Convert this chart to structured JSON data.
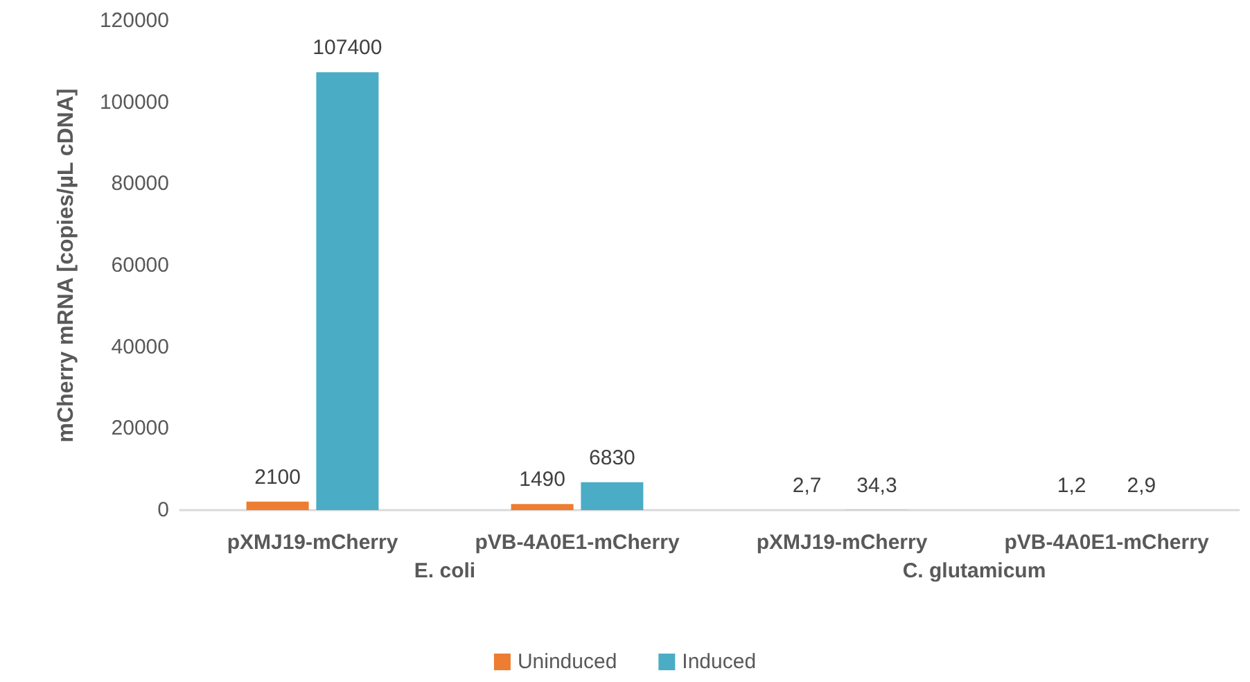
{
  "chart_data": {
    "type": "bar",
    "categories": [
      "pXMJ19-mCherry",
      "pVB-4A0E1-mCherry",
      "pXMJ19-mCherry",
      "pVB-4A0E1-mCherry"
    ],
    "series": [
      {
        "name": "Uninduced",
        "color": "#ed7d31",
        "values": [
          2100,
          1490,
          2.7,
          1.2
        ],
        "value_labels": [
          "2100",
          "1490",
          "2,7",
          "1,2"
        ]
      },
      {
        "name": "Induced",
        "color": "#4bacc6",
        "values": [
          107400,
          6830,
          34.3,
          2.9
        ],
        "value_labels": [
          "107400",
          "6830",
          "34,3",
          "2,9"
        ]
      }
    ],
    "ylabel": "mCherry mRNA [copies/µL cDNA]",
    "annotations": [
      "E. coli",
      "C. glutamicum"
    ],
    "ylim": [
      0,
      120000
    ],
    "yticks": [
      0,
      20000,
      40000,
      60000,
      80000,
      100000,
      120000
    ],
    "grid": false,
    "legend": "bottom"
  }
}
